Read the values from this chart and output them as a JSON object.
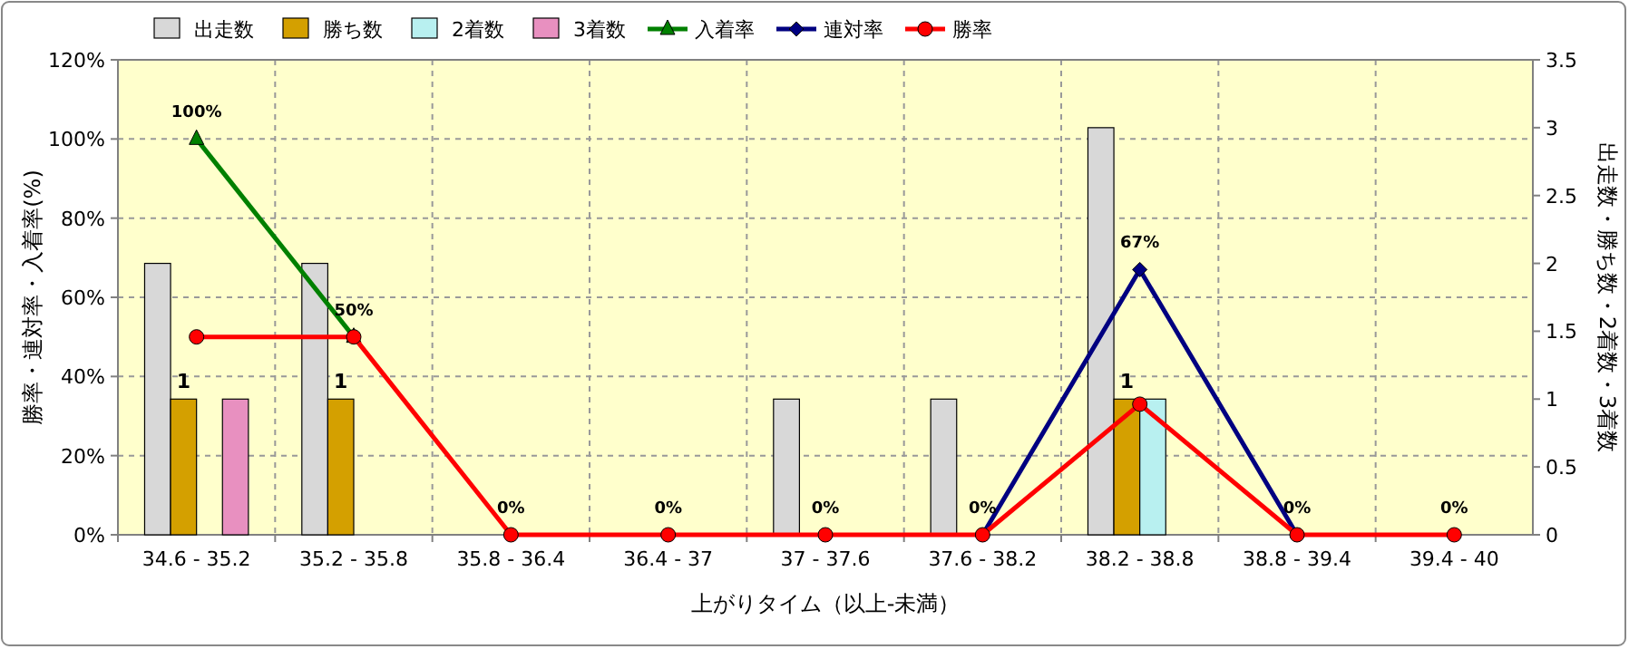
{
  "chart_data": {
    "type": "bar",
    "categories": [
      "34.6 - 35.2",
      "35.2 - 35.8",
      "35.8 - 36.4",
      "36.4 - 37",
      "37 - 37.6",
      "37.6 - 38.2",
      "38.2 - 38.8",
      "38.8 - 39.4",
      "39.4 - 40"
    ],
    "xlabel": "上がりタイム（以上-未満）",
    "ylabel": "勝率・連対率・入着率(%)",
    "y2label": "出走数・勝ち数・2着数・3着数",
    "ylim": [
      0,
      120
    ],
    "yticks": [
      {
        "value": 0,
        "label": "0%"
      },
      {
        "value": 20,
        "label": "20%"
      },
      {
        "value": 40,
        "label": "40%"
      },
      {
        "value": 60,
        "label": "60%"
      },
      {
        "value": 80,
        "label": "80%"
      },
      {
        "value": 100,
        "label": "100%"
      },
      {
        "value": 120,
        "label": "120%"
      }
    ],
    "y2lim": [
      0,
      3.5
    ],
    "y2ticks": [
      0,
      0.5,
      1,
      1.5,
      2,
      2.5,
      3,
      3.5
    ],
    "grid": true,
    "legend": "top",
    "series": [
      {
        "name": "出走数",
        "axis": "y2",
        "color": "#d8d8d8",
        "values": [
          2,
          2,
          0,
          0,
          1,
          1,
          3,
          0,
          0
        ]
      },
      {
        "name": "勝ち数",
        "axis": "y2",
        "color": "#d4a000",
        "values": [
          1,
          1,
          0,
          0,
          0,
          0,
          1,
          0,
          0
        ],
        "value_labels": [
          "1",
          "1",
          null,
          null,
          null,
          null,
          "1",
          null,
          null
        ]
      },
      {
        "name": "2着数",
        "axis": "y2",
        "color": "#b8f0f0",
        "values": [
          0,
          0,
          0,
          0,
          0,
          0,
          1,
          0,
          0
        ]
      },
      {
        "name": "3着数",
        "axis": "y2",
        "color": "#e890c0",
        "values": [
          1,
          0,
          0,
          0,
          0,
          0,
          0,
          0,
          0
        ]
      },
      {
        "name": "入着率",
        "type": "line",
        "color": "#008000",
        "marker": "triangle",
        "values": [
          100,
          50,
          null,
          null,
          null,
          null,
          null,
          null,
          null
        ],
        "value_labels": [
          "100%",
          "50%",
          null,
          null,
          null,
          null,
          null,
          null,
          null
        ]
      },
      {
        "name": "連対率",
        "type": "line",
        "color": "#000080",
        "marker": "diamond",
        "values": [
          null,
          null,
          null,
          null,
          null,
          0,
          67,
          0,
          null
        ],
        "value_labels": [
          null,
          null,
          null,
          null,
          null,
          null,
          "67%",
          null,
          null
        ]
      },
      {
        "name": "勝率",
        "type": "line",
        "color": "#ff0000",
        "marker": "circle",
        "values": [
          50,
          50,
          0,
          0,
          0,
          0,
          33,
          0,
          0
        ],
        "value_labels": [
          null,
          null,
          "0%",
          "0%",
          "0%",
          "0%",
          null,
          "0%",
          "0%"
        ]
      }
    ]
  }
}
